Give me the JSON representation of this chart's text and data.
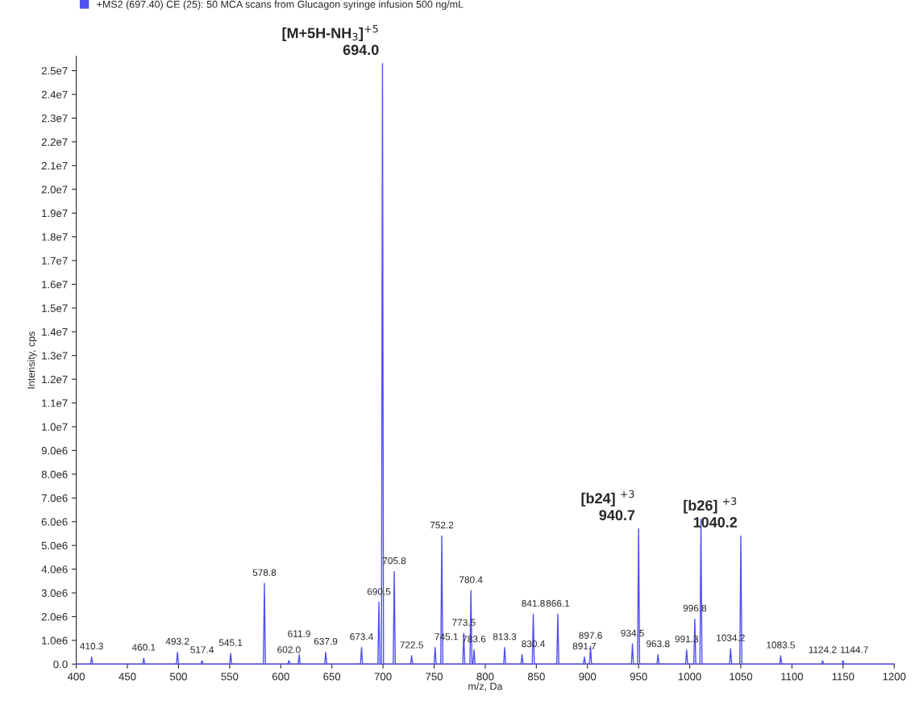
{
  "chart_data": {
    "type": "line",
    "xlabel": "m/z, Da",
    "ylabel": "Intensity, cps",
    "xlim": [
      400,
      1200
    ],
    "xticks": [
      400,
      450,
      500,
      550,
      600,
      650,
      700,
      750,
      800,
      850,
      900,
      950,
      1000,
      1050,
      1100,
      1150,
      1200
    ],
    "ylim": [
      0,
      25600000
    ],
    "yticks": [
      {
        "value": 0,
        "label": "0.0"
      },
      {
        "value": 1000000,
        "label": "1.0e6"
      },
      {
        "value": 2000000,
        "label": "2.0e6"
      },
      {
        "value": 3000000,
        "label": "3.0e6"
      },
      {
        "value": 4000000,
        "label": "4.0e6"
      },
      {
        "value": 5000000,
        "label": "5.0e6"
      },
      {
        "value": 6000000,
        "label": "6.0e6"
      },
      {
        "value": 7000000,
        "label": "7.0e6"
      },
      {
        "value": 8000000,
        "label": "8.0e6"
      },
      {
        "value": 9000000,
        "label": "9.0e6"
      },
      {
        "value": 10000000,
        "label": "1.0e7"
      },
      {
        "value": 11000000,
        "label": "1.1e7"
      },
      {
        "value": 12000000,
        "label": "1.2e7"
      },
      {
        "value": 13000000,
        "label": "1.3e7"
      },
      {
        "value": 14000000,
        "label": "1.4e7"
      },
      {
        "value": 15000000,
        "label": "1.5e7"
      },
      {
        "value": 16000000,
        "label": "1.6e7"
      },
      {
        "value": 17000000,
        "label": "1.7e7"
      },
      {
        "value": 18000000,
        "label": "1.8e7"
      },
      {
        "value": 19000000,
        "label": "1.9e7"
      },
      {
        "value": 20000000,
        "label": "2.0e7"
      },
      {
        "value": 21000000,
        "label": "2.1e7"
      },
      {
        "value": 22000000,
        "label": "2.2e7"
      },
      {
        "value": 23000000,
        "label": "2.3e7"
      },
      {
        "value": 24000000,
        "label": "2.4e7"
      },
      {
        "value": 25000000,
        "label": "2.5e7"
      }
    ],
    "grid": false,
    "legend": "top left",
    "marker": "none",
    "line_style": "solid",
    "series": [
      {
        "name": "+MS2 (697.40) CE (25): 50 MCA scans from Glucagon syringe infusion 500 ng/mL",
        "color": "#5050f0",
        "x": [
          400,
          414,
          415,
          416,
          465,
          466,
          467,
          498,
          499,
          500,
          522,
          523,
          524,
          550,
          551,
          552,
          583,
          584,
          585,
          607,
          608,
          609,
          617,
          618,
          619,
          643,
          644,
          645,
          678,
          679,
          680,
          695,
          696,
          697,
          698.5,
          699.5,
          700.5,
          710,
          711,
          712,
          727,
          728,
          729,
          750,
          751,
          752,
          756.5,
          757.5,
          758.5,
          778,
          779,
          780,
          785,
          786,
          787,
          788,
          789,
          790,
          818,
          819,
          820,
          835,
          836,
          837,
          846,
          847,
          848,
          870,
          871,
          872,
          896,
          897,
          898,
          902,
          903,
          904,
          943,
          944,
          945,
          949,
          950,
          951,
          968,
          969,
          970,
          996,
          997,
          998,
          1004,
          1005,
          1006,
          1010,
          1011,
          1012,
          1039,
          1040,
          1041,
          1049,
          1050,
          1051,
          1088,
          1089,
          1090,
          1129,
          1130,
          1131,
          1149,
          1150,
          1151,
          1200
        ],
        "values": [
          0,
          0,
          300000,
          0,
          0,
          250000,
          0,
          0,
          500000,
          0,
          0,
          150000,
          0,
          0,
          450000,
          0,
          0,
          3400000,
          0,
          0,
          150000,
          0,
          0,
          400000,
          0,
          0,
          500000,
          0,
          0,
          700000,
          0,
          0,
          2600000,
          0,
          0,
          25300000,
          0,
          0,
          3900000,
          0,
          0,
          350000,
          0,
          0,
          700000,
          0,
          0,
          5400000,
          0,
          0,
          1300000,
          0,
          0,
          3100000,
          0,
          0,
          600000,
          0,
          0,
          700000,
          0,
          0,
          400000,
          0,
          0,
          2100000,
          0,
          0,
          2100000,
          0,
          0,
          300000,
          0,
          0,
          750000,
          0,
          0,
          850000,
          0,
          0,
          5700000,
          0,
          0,
          400000,
          0,
          0,
          600000,
          0,
          0,
          1900000,
          0,
          0,
          6100000,
          0,
          0,
          650000,
          0,
          0,
          5400000,
          0,
          0,
          350000,
          0,
          0,
          150000,
          0,
          0,
          150000,
          0,
          0
        ]
      }
    ],
    "annotations": [
      {
        "text": "[M+5H-NH$_{3}$]$^{+5}$\n694.0",
        "x": 699.5,
        "y": 25300000
      },
      {
        "text": "[b24] $^{+3}$\n940.7",
        "x": 950,
        "y": 5700000
      },
      {
        "text": "[b26] $^{+3}$\n1040.2",
        "x": 1050,
        "y": 5400000
      },
      {
        "text": "410.3",
        "x": 415,
        "y": 300000
      },
      {
        "text": "460.1",
        "x": 466,
        "y": 250000
      },
      {
        "text": "493.2",
        "x": 499,
        "y": 500000
      },
      {
        "text": "517.4",
        "x": 523,
        "y": 150000
      },
      {
        "text": "545.1",
        "x": 551,
        "y": 450000
      },
      {
        "text": "578.8",
        "x": 584,
        "y": 3400000
      },
      {
        "text": "602.0",
        "x": 608,
        "y": 150000
      },
      {
        "text": "611.9",
        "x": 618,
        "y": 400000
      },
      {
        "text": "637.9",
        "x": 644,
        "y": 500000
      },
      {
        "text": "673.4",
        "x": 679,
        "y": 700000
      },
      {
        "text": "690.5",
        "x": 696,
        "y": 2600000
      },
      {
        "text": "705.8",
        "x": 711,
        "y": 3900000
      },
      {
        "text": "722.5",
        "x": 728,
        "y": 350000
      },
      {
        "text": "745.1",
        "x": 751,
        "y": 700000
      },
      {
        "text": "752.2",
        "x": 757.5,
        "y": 5400000
      },
      {
        "text": "773.5",
        "x": 779,
        "y": 1300000
      },
      {
        "text": "780.4",
        "x": 786,
        "y": 3100000
      },
      {
        "text": "783.6",
        "x": 789,
        "y": 600000
      },
      {
        "text": "813.3",
        "x": 819,
        "y": 700000
      },
      {
        "text": "830.4",
        "x": 836,
        "y": 400000
      },
      {
        "text": "841.8",
        "x": 847,
        "y": 2100000
      },
      {
        "text": "866.1",
        "x": 871,
        "y": 2100000
      },
      {
        "text": "891.7",
        "x": 897,
        "y": 300000
      },
      {
        "text": "897.6",
        "x": 903,
        "y": 750000
      },
      {
        "text": "934.5",
        "x": 944,
        "y": 850000
      },
      {
        "text": "963.8",
        "x": 969,
        "y": 400000
      },
      {
        "text": "991.3",
        "x": 997,
        "y": 600000
      },
      {
        "text": "996.8",
        "x": 1005,
        "y": 1900000
      },
      {
        "text": "1034.2",
        "x": 1040,
        "y": 650000
      },
      {
        "text": "1083.5",
        "x": 1089,
        "y": 350000
      },
      {
        "text": "1124.2",
        "x": 1130,
        "y": 150000
      },
      {
        "text": "1144.7",
        "x": 1150,
        "y": 150000
      }
    ]
  }
}
